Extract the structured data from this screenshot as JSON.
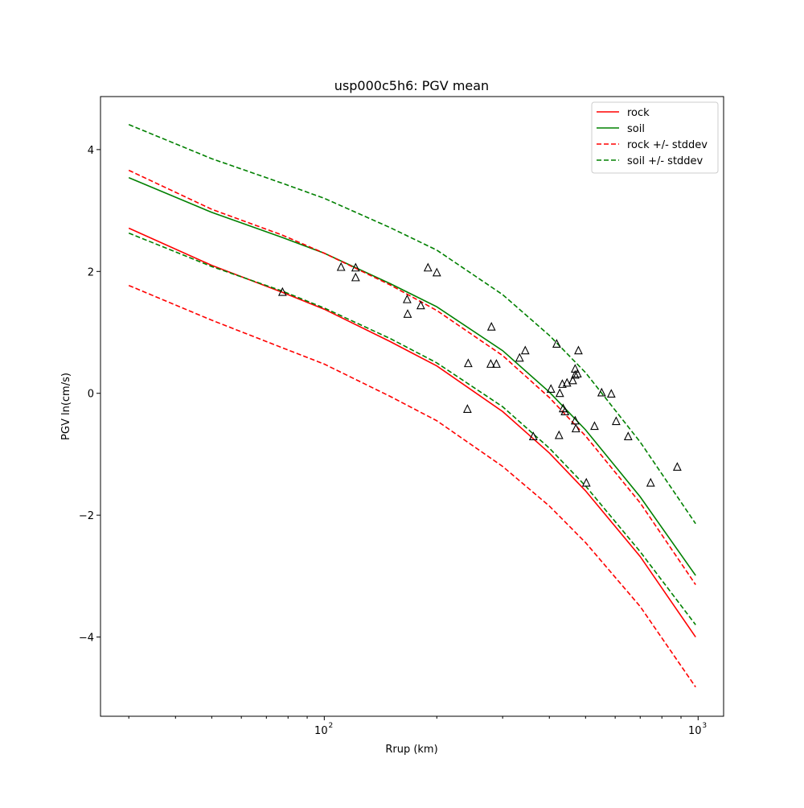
{
  "chart_data": {
    "type": "line",
    "title": "usp000c5h6: PGV mean",
    "xlabel": "Rrup (km)",
    "ylabel": "PGV ln(cm/s)",
    "xscale": "log",
    "xlim": [
      25.2,
      1170
    ],
    "ylim": [
      -5.3,
      4.87
    ],
    "xticks": [
      {
        "value": 100,
        "base": "10",
        "exp": "2"
      },
      {
        "value": 1000,
        "base": "10",
        "exp": "3"
      }
    ],
    "yticks": [
      {
        "value": 4,
        "label": "4"
      },
      {
        "value": 2,
        "label": "2"
      },
      {
        "value": 0,
        "label": "0"
      },
      {
        "value": -2,
        "label": "−2"
      },
      {
        "value": -4,
        "label": "−4"
      }
    ],
    "grid": false,
    "legend_position": "top-right",
    "x": [
      30,
      50,
      77,
      100,
      150,
      200,
      300,
      400,
      500,
      700,
      985
    ],
    "series": [
      {
        "name": "rock",
        "color": "#ff0000",
        "dash": false,
        "values": [
          2.71,
          2.1,
          1.66,
          1.38,
          0.85,
          0.45,
          -0.3,
          -0.98,
          -1.6,
          -2.68,
          -4.0
        ]
      },
      {
        "name": "soil",
        "color": "#008000",
        "dash": false,
        "values": [
          3.54,
          2.97,
          2.56,
          2.3,
          1.8,
          1.42,
          0.7,
          0.02,
          -0.6,
          -1.7,
          -2.99
        ]
      },
      {
        "name": "rock +/- stddev",
        "color": "#ff0000",
        "dash": true,
        "values": [
          3.66,
          3.02,
          2.6,
          2.3,
          1.78,
          1.36,
          0.62,
          -0.07,
          -0.7,
          -1.8,
          -3.14
        ]
      },
      {
        "name": "rock +/- stddev (lower)",
        "legend": false,
        "color": "#ff0000",
        "dash": true,
        "values": [
          1.77,
          1.2,
          0.75,
          0.48,
          -0.05,
          -0.45,
          -1.2,
          -1.85,
          -2.45,
          -3.5,
          -4.82
        ]
      },
      {
        "name": "soil +/- stddev",
        "color": "#008000",
        "dash": true,
        "values": [
          4.41,
          3.85,
          3.45,
          3.2,
          2.72,
          2.35,
          1.62,
          0.95,
          0.34,
          -0.8,
          -2.14
        ]
      },
      {
        "name": "soil +/- stddev (lower)",
        "legend": false,
        "color": "#008000",
        "dash": true,
        "values": [
          2.63,
          2.08,
          1.68,
          1.4,
          0.9,
          0.5,
          -0.22,
          -0.9,
          -1.52,
          -2.6,
          -3.8
        ]
      }
    ],
    "observations": {
      "marker": "triangle",
      "x": [
        77.3,
        110.9,
        121.3,
        121.3,
        166.6,
        167.1,
        181.2,
        189.4,
        200,
        242.7,
        241.5,
        280,
        278.8,
        288.7,
        333,
        344.8,
        362.3,
        403.9,
        418.5,
        426.6,
        433.3,
        446,
        435.4,
        440.4,
        424.6,
        462.1,
        468.9,
        468.9,
        478.5,
        475.7,
        468.9,
        471,
        502.3,
        528.3,
        552,
        585.8,
        603.6,
        650,
        746.5,
        879.5
      ],
      "y": [
        1.66,
        2.07,
        2.06,
        1.9,
        1.54,
        1.3,
        1.44,
        2.06,
        1.98,
        0.49,
        -0.26,
        1.09,
        0.48,
        0.48,
        0.58,
        0.7,
        -0.71,
        0.07,
        0.81,
        0.0,
        0.15,
        0.17,
        -0.25,
        -0.3,
        -0.69,
        0.21,
        0.4,
        0.3,
        0.7,
        0.32,
        -0.45,
        -0.58,
        -1.47,
        -0.54,
        0.01,
        -0.01,
        -0.46,
        -0.71,
        -1.47,
        -1.21
      ]
    }
  }
}
